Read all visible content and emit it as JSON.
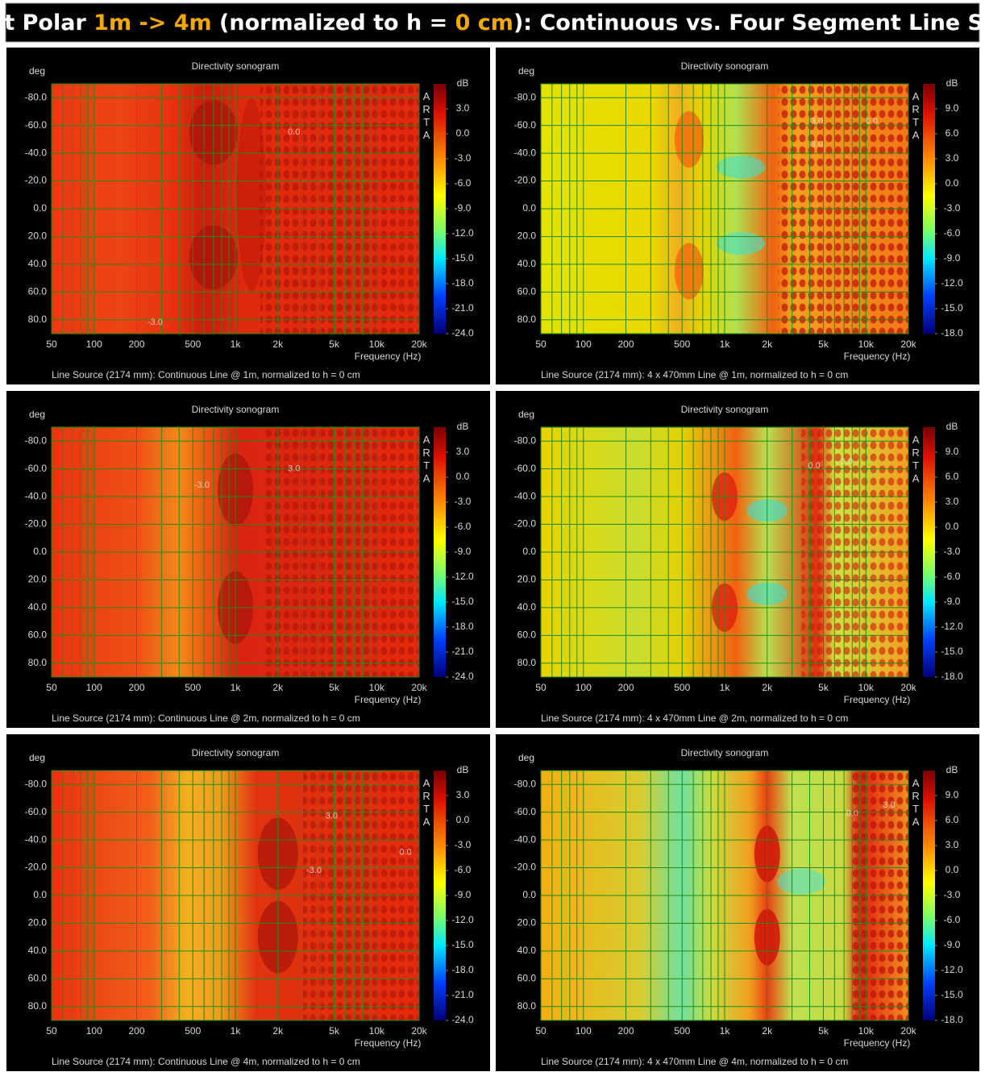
{
  "header": {
    "parts": [
      "Height Polar ",
      "1m -> 4m",
      " (normalized to h = ",
      "0 cm",
      "): Continuous vs. Four Segment Line Source"
    ]
  },
  "chart_data": [
    {
      "type": "heatmap",
      "title": "Directivity sonogram",
      "ylabel": "deg",
      "xlabel": "Frequency (Hz)",
      "watermark": "ARTA",
      "footer": "Line Source (2174 mm): Continuous Line @ 1m, normalized to h = 0 cm",
      "xscale": "log",
      "xlim": [
        50,
        20000
      ],
      "xticks": [
        50,
        100,
        200,
        500,
        {
          "value": 1000,
          "label": "1k"
        },
        {
          "value": 2000,
          "label": "2k"
        },
        {
          "value": 5000,
          "label": "5k"
        },
        {
          "value": 10000,
          "label": "10k"
        },
        {
          "value": 20000,
          "label": "20k"
        }
      ],
      "xgrid": [
        60,
        70,
        80,
        90,
        300,
        400,
        600,
        700,
        800,
        900,
        3000,
        4000,
        6000,
        7000,
        8000,
        9000
      ],
      "ylim": [
        -90,
        90
      ],
      "y_inverted": true,
      "yticks": [
        {
          "value": -80,
          "label": "-80.0"
        },
        {
          "value": -60,
          "label": "-60.0"
        },
        {
          "value": -40,
          "label": "-40.0"
        },
        {
          "value": -20,
          "label": "-20.0"
        },
        {
          "value": 0,
          "label": "0.0"
        },
        {
          "value": 20,
          "label": "20.0"
        },
        {
          "value": 40,
          "label": "40.0"
        },
        {
          "value": 60,
          "label": "60.0"
        },
        {
          "value": 80,
          "label": "80.0"
        }
      ],
      "grid": true,
      "grid_color": "#1e8c1e",
      "colorbar": {
        "label": "dB",
        "lim": [
          -24,
          6
        ],
        "ticks": [
          {
            "value": 3,
            "label": "3.0"
          },
          {
            "value": 0,
            "label": "0.0"
          },
          {
            "value": -3,
            "label": "-3.0"
          },
          {
            "value": -6,
            "label": "-6.0"
          },
          {
            "value": -9,
            "label": "-9.0"
          },
          {
            "value": -12,
            "label": "-12.0"
          },
          {
            "value": -15,
            "label": "-15.0"
          },
          {
            "value": -18,
            "label": "-18.0"
          },
          {
            "value": -21,
            "label": "-21.0"
          },
          {
            "value": -24,
            "label": "-24.0"
          }
        ]
      },
      "annotations": [
        {
          "label": "0.0",
          "freq": 2600,
          "deg": -55
        },
        {
          "label": "-3.0",
          "freq": 270,
          "deg": 82
        }
      ]
    },
    {
      "type": "heatmap",
      "title": "Directivity sonogram",
      "ylabel": "deg",
      "xlabel": "Frequency (Hz)",
      "watermark": "ARTA",
      "footer": "Line Source (2174 mm): 4 x 470mm Line @ 1m, normalized to h = 0 cm",
      "xscale": "log",
      "xlim": [
        50,
        20000
      ],
      "xticks": [
        50,
        100,
        200,
        500,
        {
          "value": 1000,
          "label": "1k"
        },
        {
          "value": 2000,
          "label": "2k"
        },
        {
          "value": 5000,
          "label": "5k"
        },
        {
          "value": 10000,
          "label": "10k"
        },
        {
          "value": 20000,
          "label": "20k"
        }
      ],
      "xgrid": [
        60,
        70,
        80,
        90,
        300,
        400,
        600,
        700,
        800,
        900,
        3000,
        4000,
        6000,
        7000,
        8000,
        9000
      ],
      "ylim": [
        -90,
        90
      ],
      "y_inverted": true,
      "yticks": [
        {
          "value": -80,
          "label": "-80.0"
        },
        {
          "value": -60,
          "label": "-60.0"
        },
        {
          "value": -40,
          "label": "-40.0"
        },
        {
          "value": -20,
          "label": "-20.0"
        },
        {
          "value": 0,
          "label": "0.0"
        },
        {
          "value": 20,
          "label": "20.0"
        },
        {
          "value": 40,
          "label": "40.0"
        },
        {
          "value": 60,
          "label": "60.0"
        },
        {
          "value": 80,
          "label": "80.0"
        }
      ],
      "grid": true,
      "grid_color": "#1e8c1e",
      "colorbar": {
        "label": "dB",
        "lim": [
          -18,
          12
        ],
        "ticks": [
          {
            "value": 9,
            "label": "9.0"
          },
          {
            "value": 6,
            "label": "6.0"
          },
          {
            "value": 3,
            "label": "3.0"
          },
          {
            "value": 0,
            "label": "0.0"
          },
          {
            "value": -3,
            "label": "-3.0"
          },
          {
            "value": -6,
            "label": "-6.0"
          },
          {
            "value": -9,
            "label": "-9.0"
          },
          {
            "value": -12,
            "label": "-12.0"
          },
          {
            "value": -15,
            "label": "-15.0"
          },
          {
            "value": -18,
            "label": "-18.0"
          }
        ]
      },
      "annotations": [
        {
          "label": "3.0",
          "freq": 4500,
          "deg": -63
        },
        {
          "label": "0.0",
          "freq": 11000,
          "deg": -63
        },
        {
          "label": "3.0",
          "freq": 4500,
          "deg": -46
        }
      ]
    },
    {
      "type": "heatmap",
      "title": "Directivity sonogram",
      "ylabel": "deg",
      "xlabel": "Frequency (Hz)",
      "watermark": "ARTA",
      "footer": "Line Source (2174 mm): Continuous Line @ 2m, normalized to h = 0 cm",
      "xscale": "log",
      "xlim": [
        50,
        20000
      ],
      "xticks": [
        50,
        100,
        200,
        500,
        {
          "value": 1000,
          "label": "1k"
        },
        {
          "value": 2000,
          "label": "2k"
        },
        {
          "value": 5000,
          "label": "5k"
        },
        {
          "value": 10000,
          "label": "10k"
        },
        {
          "value": 20000,
          "label": "20k"
        }
      ],
      "xgrid": [
        60,
        70,
        80,
        90,
        300,
        400,
        600,
        700,
        800,
        900,
        3000,
        4000,
        6000,
        7000,
        8000,
        9000
      ],
      "ylim": [
        -90,
        90
      ],
      "y_inverted": true,
      "yticks": [
        {
          "value": -80,
          "label": "-80.0"
        },
        {
          "value": -60,
          "label": "-60.0"
        },
        {
          "value": -40,
          "label": "-40.0"
        },
        {
          "value": -20,
          "label": "-20.0"
        },
        {
          "value": 0,
          "label": "0.0"
        },
        {
          "value": 20,
          "label": "20.0"
        },
        {
          "value": 40,
          "label": "40.0"
        },
        {
          "value": 60,
          "label": "60.0"
        },
        {
          "value": 80,
          "label": "80.0"
        }
      ],
      "grid": true,
      "grid_color": "#1e8c1e",
      "colorbar": {
        "label": "dB",
        "lim": [
          -24,
          6
        ],
        "ticks": [
          {
            "value": 3,
            "label": "3.0"
          },
          {
            "value": 0,
            "label": "0.0"
          },
          {
            "value": -3,
            "label": "-3.0"
          },
          {
            "value": -6,
            "label": "-6.0"
          },
          {
            "value": -9,
            "label": "-9.0"
          },
          {
            "value": -12,
            "label": "-12.0"
          },
          {
            "value": -15,
            "label": "-15.0"
          },
          {
            "value": -18,
            "label": "-18.0"
          },
          {
            "value": -21,
            "label": "-21.0"
          },
          {
            "value": -24,
            "label": "-24.0"
          }
        ]
      },
      "annotations": [
        {
          "label": "3.0",
          "freq": 2600,
          "deg": -60
        },
        {
          "label": "-3.0",
          "freq": 580,
          "deg": -48
        }
      ]
    },
    {
      "type": "heatmap",
      "title": "Directivity sonogram",
      "ylabel": "deg",
      "xlabel": "Frequency (Hz)",
      "watermark": "ARTA",
      "footer": "Line Source (2174 mm): 4 x 470mm Line @ 2m, normalized to h = 0 cm",
      "xscale": "log",
      "xlim": [
        50,
        20000
      ],
      "xticks": [
        50,
        100,
        200,
        500,
        {
          "value": 1000,
          "label": "1k"
        },
        {
          "value": 2000,
          "label": "2k"
        },
        {
          "value": 5000,
          "label": "5k"
        },
        {
          "value": 10000,
          "label": "10k"
        },
        {
          "value": 20000,
          "label": "20k"
        }
      ],
      "xgrid": [
        60,
        70,
        80,
        90,
        300,
        400,
        600,
        700,
        800,
        900,
        3000,
        4000,
        6000,
        7000,
        8000,
        9000
      ],
      "ylim": [
        -90,
        90
      ],
      "y_inverted": true,
      "yticks": [
        {
          "value": -80,
          "label": "-80.0"
        },
        {
          "value": -60,
          "label": "-60.0"
        },
        {
          "value": -40,
          "label": "-40.0"
        },
        {
          "value": -20,
          "label": "-20.0"
        },
        {
          "value": 0,
          "label": "0.0"
        },
        {
          "value": 20,
          "label": "20.0"
        },
        {
          "value": 40,
          "label": "40.0"
        },
        {
          "value": 60,
          "label": "60.0"
        },
        {
          "value": 80,
          "label": "80.0"
        }
      ],
      "grid": true,
      "grid_color": "#1e8c1e",
      "colorbar": {
        "label": "dB",
        "lim": [
          -18,
          12
        ],
        "ticks": [
          {
            "value": 9,
            "label": "9.0"
          },
          {
            "value": 6,
            "label": "6.0"
          },
          {
            "value": 3,
            "label": "3.0"
          },
          {
            "value": 0,
            "label": "0.0"
          },
          {
            "value": -3,
            "label": "-3.0"
          },
          {
            "value": -6,
            "label": "-6.0"
          },
          {
            "value": -9,
            "label": "-9.0"
          },
          {
            "value": -12,
            "label": "-12.0"
          },
          {
            "value": -15,
            "label": "-15.0"
          },
          {
            "value": -18,
            "label": "-18.0"
          }
        ]
      },
      "annotations": [
        {
          "label": "0.0",
          "freq": 4300,
          "deg": -62
        },
        {
          "label": "3.0",
          "freq": 7300,
          "deg": -65
        }
      ]
    },
    {
      "type": "heatmap",
      "title": "Directivity sonogram",
      "ylabel": "deg",
      "xlabel": "Frequency (Hz)",
      "watermark": "ARTA",
      "footer": "Line Source (2174 mm): Continuous Line @ 4m, normalized to h = 0 cm",
      "xscale": "log",
      "xlim": [
        50,
        20000
      ],
      "xticks": [
        50,
        100,
        200,
        500,
        {
          "value": 1000,
          "label": "1k"
        },
        {
          "value": 2000,
          "label": "2k"
        },
        {
          "value": 5000,
          "label": "5k"
        },
        {
          "value": 10000,
          "label": "10k"
        },
        {
          "value": 20000,
          "label": "20k"
        }
      ],
      "xgrid": [
        60,
        70,
        80,
        90,
        300,
        400,
        600,
        700,
        800,
        900,
        3000,
        4000,
        6000,
        7000,
        8000,
        9000
      ],
      "ylim": [
        -90,
        90
      ],
      "y_inverted": true,
      "yticks": [
        {
          "value": -80,
          "label": "-80.0"
        },
        {
          "value": -60,
          "label": "-60.0"
        },
        {
          "value": -40,
          "label": "-40.0"
        },
        {
          "value": -20,
          "label": "-20.0"
        },
        {
          "value": 0,
          "label": "0.0"
        },
        {
          "value": 20,
          "label": "20.0"
        },
        {
          "value": 40,
          "label": "40.0"
        },
        {
          "value": 60,
          "label": "60.0"
        },
        {
          "value": 80,
          "label": "80.0"
        }
      ],
      "grid": true,
      "grid_color": "#1e8c1e",
      "colorbar": {
        "label": "dB",
        "lim": [
          -24,
          6
        ],
        "ticks": [
          {
            "value": 3,
            "label": "3.0"
          },
          {
            "value": 0,
            "label": "0.0"
          },
          {
            "value": -3,
            "label": "-3.0"
          },
          {
            "value": -6,
            "label": "-6.0"
          },
          {
            "value": -9,
            "label": "-9.0"
          },
          {
            "value": -12,
            "label": "-12.0"
          },
          {
            "value": -15,
            "label": "-15.0"
          },
          {
            "value": -18,
            "label": "-18.0"
          },
          {
            "value": -21,
            "label": "-21.0"
          },
          {
            "value": -24,
            "label": "-24.0"
          }
        ]
      },
      "annotations": [
        {
          "label": "3.0",
          "freq": 4800,
          "deg": -57
        },
        {
          "label": "0.0",
          "freq": 16000,
          "deg": -31
        },
        {
          "label": "-3.0",
          "freq": 3600,
          "deg": -18
        }
      ]
    },
    {
      "type": "heatmap",
      "title": "Directivity sonogram",
      "ylabel": "deg",
      "xlabel": "Frequency (Hz)",
      "watermark": "ARTA",
      "footer": "Line Source (2174 mm): 4 x 470mm Line @ 4m, normalized to h = 0 cm",
      "xscale": "log",
      "xlim": [
        50,
        20000
      ],
      "xticks": [
        50,
        100,
        200,
        500,
        {
          "value": 1000,
          "label": "1k"
        },
        {
          "value": 2000,
          "label": "2k"
        },
        {
          "value": 5000,
          "label": "5k"
        },
        {
          "value": 10000,
          "label": "10k"
        },
        {
          "value": 20000,
          "label": "20k"
        }
      ],
      "xgrid": [
        60,
        70,
        80,
        90,
        300,
        400,
        600,
        700,
        800,
        900,
        3000,
        4000,
        6000,
        7000,
        8000,
        9000
      ],
      "ylim": [
        -90,
        90
      ],
      "y_inverted": true,
      "yticks": [
        {
          "value": -80,
          "label": "-80.0"
        },
        {
          "value": -60,
          "label": "-60.0"
        },
        {
          "value": -40,
          "label": "-40.0"
        },
        {
          "value": -20,
          "label": "-20.0"
        },
        {
          "value": 0,
          "label": "0.0"
        },
        {
          "value": 20,
          "label": "20.0"
        },
        {
          "value": 40,
          "label": "40.0"
        },
        {
          "value": 60,
          "label": "60.0"
        },
        {
          "value": 80,
          "label": "80.0"
        }
      ],
      "grid": true,
      "grid_color": "#1e8c1e",
      "colorbar": {
        "label": "dB",
        "lim": [
          -18,
          12
        ],
        "ticks": [
          {
            "value": 9,
            "label": "9.0"
          },
          {
            "value": 6,
            "label": "6.0"
          },
          {
            "value": 3,
            "label": "3.0"
          },
          {
            "value": 0,
            "label": "0.0"
          },
          {
            "value": -3,
            "label": "-3.0"
          },
          {
            "value": -6,
            "label": "-6.0"
          },
          {
            "value": -9,
            "label": "-9.0"
          },
          {
            "value": -12,
            "label": "-12.0"
          },
          {
            "value": -15,
            "label": "-15.0"
          },
          {
            "value": -18,
            "label": "-18.0"
          }
        ]
      },
      "annotations": [
        {
          "label": "0.0",
          "freq": 8000,
          "deg": -59
        },
        {
          "label": "3.0",
          "freq": 14600,
          "deg": -65
        }
      ]
    }
  ]
}
